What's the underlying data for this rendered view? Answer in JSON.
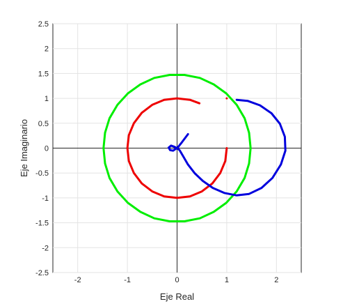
{
  "chart_data": {
    "type": "line",
    "title": "",
    "xlabel": "Eje Real",
    "ylabel": "Eje Imaginario",
    "xlim": [
      -2.5,
      2.5
    ],
    "ylim": [
      -2.5,
      2.5
    ],
    "xticks": [
      -2,
      -1,
      0,
      1,
      2
    ],
    "yticks": [
      -2.5,
      -2,
      -1.5,
      -1,
      -0.5,
      0,
      0.5,
      1,
      1.5,
      2,
      2.5
    ],
    "xtick_labels": [
      "-2",
      "-1",
      "0",
      "1",
      "2"
    ],
    "ytick_labels": [
      "-2.5",
      "-2",
      "-1.5",
      "-1",
      "-0.5",
      "0",
      "0.5",
      "1",
      "1.5",
      "2",
      "2.5"
    ],
    "grid": true,
    "axis_lines_through_origin": true,
    "series": [
      {
        "color": "#00ee00",
        "points": [
          [
            1.48,
            0.0
          ],
          [
            1.45,
            0.31
          ],
          [
            1.36,
            0.6
          ],
          [
            1.2,
            0.87
          ],
          [
            0.99,
            1.1
          ],
          [
            0.74,
            1.28
          ],
          [
            0.46,
            1.41
          ],
          [
            0.15,
            1.47
          ],
          [
            -0.15,
            1.47
          ],
          [
            -0.46,
            1.41
          ],
          [
            -0.74,
            1.28
          ],
          [
            -0.99,
            1.1
          ],
          [
            -1.2,
            0.87
          ],
          [
            -1.36,
            0.6
          ],
          [
            -1.45,
            0.31
          ],
          [
            -1.48,
            0.0
          ],
          [
            -1.45,
            -0.31
          ],
          [
            -1.36,
            -0.6
          ],
          [
            -1.2,
            -0.87
          ],
          [
            -0.99,
            -1.1
          ],
          [
            -0.74,
            -1.28
          ],
          [
            -0.46,
            -1.41
          ],
          [
            -0.15,
            -1.47
          ],
          [
            0.15,
            -1.47
          ],
          [
            0.46,
            -1.41
          ],
          [
            0.74,
            -1.28
          ],
          [
            0.99,
            -1.1
          ],
          [
            1.2,
            -0.87
          ],
          [
            1.36,
            -0.6
          ],
          [
            1.45,
            -0.31
          ],
          [
            1.48,
            0.0
          ]
        ]
      },
      {
        "color": "#ee0000",
        "points": [
          [
            1.0,
            0.0
          ],
          [
            0.97,
            -0.26
          ],
          [
            0.87,
            -0.5
          ],
          [
            0.71,
            -0.71
          ],
          [
            0.5,
            -0.87
          ],
          [
            0.26,
            -0.97
          ],
          [
            0.0,
            -1.0
          ],
          [
            -0.26,
            -0.97
          ],
          [
            -0.5,
            -0.87
          ],
          [
            -0.71,
            -0.71
          ],
          [
            -0.87,
            -0.5
          ],
          [
            -0.97,
            -0.26
          ],
          [
            -1.0,
            0.0
          ],
          [
            -0.97,
            0.26
          ],
          [
            -0.87,
            0.5
          ],
          [
            -0.71,
            0.71
          ],
          [
            -0.5,
            0.87
          ],
          [
            -0.26,
            0.97
          ],
          [
            0.0,
            1.0
          ],
          [
            0.26,
            0.97
          ],
          [
            0.45,
            0.9
          ]
        ]
      },
      {
        "color": "#ee0000",
        "points": [
          [
            1.0,
            1.0
          ]
        ]
      },
      {
        "color": "#0000dd",
        "points": [
          [
            0.22,
            0.28
          ],
          [
            0.1,
            0.12
          ],
          [
            0.02,
            0.02
          ],
          [
            -0.02,
            -0.01
          ],
          [
            -0.08,
            -0.05
          ],
          [
            -0.14,
            -0.04
          ],
          [
            -0.17,
            0.01
          ],
          [
            -0.12,
            0.05
          ],
          [
            -0.06,
            0.03
          ],
          [
            0.0,
            0.0
          ],
          [
            0.05,
            -0.04
          ],
          [
            0.12,
            -0.16
          ],
          [
            0.22,
            -0.33
          ],
          [
            0.36,
            -0.51
          ],
          [
            0.52,
            -0.66
          ],
          [
            0.72,
            -0.8
          ],
          [
            0.95,
            -0.9
          ],
          [
            1.2,
            -0.95
          ],
          [
            1.45,
            -0.92
          ],
          [
            1.7,
            -0.8
          ],
          [
            1.92,
            -0.6
          ],
          [
            2.09,
            -0.33
          ],
          [
            2.18,
            -0.05
          ],
          [
            2.17,
            0.23
          ],
          [
            2.07,
            0.49
          ],
          [
            1.9,
            0.7
          ],
          [
            1.67,
            0.86
          ],
          [
            1.42,
            0.95
          ],
          [
            1.2,
            0.97
          ]
        ]
      }
    ]
  }
}
